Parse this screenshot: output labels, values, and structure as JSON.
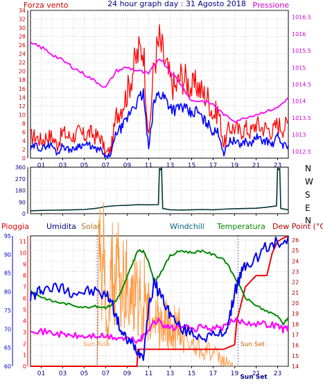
{
  "header": {
    "left_label": "Forza vento",
    "title": "24 hour graph day : 31 Agosto 2018",
    "right_label": "Pressione"
  },
  "compass": [
    "N",
    "W",
    "S",
    "E",
    "N"
  ],
  "legend_bottom": {
    "pioggia": "Pioggia",
    "umidita": "Umidita",
    "solar": "Solar",
    "windchill": "Windchill",
    "temperatura": "Temperatura",
    "dewpoint": "Dew Point (°C)"
  },
  "annotations": {
    "sun_rise": "Sun Rise",
    "sun_set": "Sun Set",
    "sun_set_axis": "Sun Set"
  },
  "colors": {
    "background": "#ffffff",
    "grid": "#b0b0b0",
    "wind": "#ff0000",
    "gust_base": "#0000ff",
    "pressure": "#ff00ff",
    "direction": "#003333",
    "humidity": "#0000ee",
    "solar": "#ff9944",
    "temperature": "#008800",
    "dewpoint": "#ff00ff",
    "rain": "#ee0000",
    "axis_blue": "#000080",
    "axis_red": "#cc0000",
    "axis_magenta": "#cc00cc",
    "axis_darkred": "#aa0000"
  },
  "chart_data": [
    {
      "type": "line",
      "panel": "wind_pressure",
      "x_ticks": [
        "01",
        "03",
        "05",
        "07",
        "09",
        "11",
        "13",
        "15",
        "17",
        "19",
        "21",
        "23"
      ],
      "y_left_ticks": [
        "0",
        "2",
        "4",
        "6",
        "8",
        "10",
        "12",
        "14",
        "16",
        "18",
        "20",
        "22",
        "24",
        "26",
        "28",
        "30",
        "32",
        "34"
      ],
      "y_left_range": [
        0,
        34
      ],
      "y_right_ticks": [
        "1012.5",
        "1013",
        "1013.5",
        "1014",
        "1014.5",
        "1015",
        "1015.5",
        "1016",
        "1016.5"
      ],
      "y_right_range": [
        1012.3,
        1016.7
      ],
      "series": [
        {
          "name": "Forza vento",
          "color": "#ff0000",
          "x": [
            0,
            0.5,
            1,
            1.5,
            2,
            2.5,
            3,
            3.5,
            4,
            4.5,
            5,
            5.5,
            6,
            6.5,
            7,
            7.5,
            8,
            8.5,
            9,
            9.5,
            10,
            10.5,
            11,
            11.5,
            12,
            12.5,
            13,
            13.5,
            14,
            14.5,
            15,
            15.5,
            16,
            16.5,
            17,
            17.5,
            18,
            18.5,
            19,
            19.5,
            20,
            20.5,
            21,
            21.5,
            22,
            22.5,
            23,
            23.5,
            24
          ],
          "values": [
            5,
            5,
            4,
            5,
            5,
            3,
            6,
            5,
            5,
            6,
            5,
            6,
            5,
            5,
            1,
            2,
            10,
            12,
            15,
            20,
            24,
            26,
            4,
            22,
            27,
            22,
            18,
            16,
            19,
            18,
            16,
            17,
            15,
            14,
            10,
            11,
            3,
            7,
            7,
            6,
            7,
            6,
            8,
            7,
            7,
            6,
            8,
            7,
            8
          ]
        },
        {
          "name": "Base vento",
          "color": "#0000ff",
          "x": [
            0,
            0.5,
            1,
            1.5,
            2,
            2.5,
            3,
            3.5,
            4,
            4.5,
            5,
            5.5,
            6,
            6.5,
            7,
            7.5,
            8,
            8.5,
            9,
            9.5,
            10,
            10.5,
            11,
            11.5,
            12,
            12.5,
            13,
            13.5,
            14,
            14.5,
            15,
            15.5,
            16,
            16.5,
            17,
            17.5,
            18,
            18.5,
            19,
            19.5,
            20,
            20.5,
            21,
            21.5,
            22,
            22.5,
            23,
            23.5,
            24
          ],
          "values": [
            2,
            3,
            2,
            3,
            3,
            1,
            3,
            2,
            2,
            3,
            3,
            3,
            2,
            2,
            0,
            1,
            6,
            7,
            9,
            12,
            13,
            15,
            2,
            13,
            15,
            14,
            12,
            11,
            12,
            11,
            10,
            11,
            9,
            8,
            6,
            6,
            1,
            4,
            4,
            3,
            4,
            3,
            5,
            4,
            4,
            3,
            5,
            3,
            3
          ]
        },
        {
          "name": "Pressione",
          "color": "#ff00ff",
          "x": [
            0,
            1,
            2,
            3,
            4,
            5,
            6,
            7,
            8,
            9,
            10,
            11,
            12,
            13,
            14,
            15,
            16,
            17,
            18,
            19,
            20,
            21,
            22,
            23,
            24
          ],
          "values": [
            1015.7,
            1015.6,
            1015.4,
            1015.2,
            1015.0,
            1014.8,
            1014.6,
            1014.4,
            1014.9,
            1015.0,
            1014.9,
            1014.8,
            1015.3,
            1014.9,
            1014.5,
            1014.0,
            1014.0,
            1013.9,
            1013.6,
            1013.4,
            1013.5,
            1013.6,
            1013.7,
            1013.8,
            1014.1
          ]
        }
      ]
    },
    {
      "type": "line",
      "panel": "wind_direction",
      "x_ticks": [
        "01",
        "03",
        "05",
        "07",
        "09",
        "11",
        "13",
        "15",
        "17",
        "19",
        "21",
        "23"
      ],
      "y_ticks": [
        "0",
        "90",
        "180",
        "270",
        "360"
      ],
      "y_range": [
        0,
        360
      ],
      "series": [
        {
          "name": "Direzione",
          "color": "#003333",
          "x": [
            0,
            1,
            2,
            3,
            4,
            5,
            6,
            7,
            8,
            9,
            10,
            11,
            11.9,
            12.0,
            12.1,
            12.2,
            12.3,
            13,
            14,
            15,
            16,
            17,
            18,
            19,
            20,
            21,
            22,
            22.9,
            23.0,
            23.1,
            23.2,
            23.3,
            24
          ],
          "values": [
            22,
            25,
            27,
            28,
            30,
            32,
            40,
            55,
            62,
            65,
            70,
            68,
            70,
            350,
            340,
            355,
            40,
            30,
            28,
            30,
            32,
            30,
            35,
            38,
            40,
            42,
            50,
            60,
            355,
            340,
            350,
            40,
            30
          ]
        }
      ]
    },
    {
      "type": "line",
      "panel": "temperature_humidity",
      "x_ticks": [
        "01",
        "03",
        "05",
        "07",
        "09",
        "11",
        "13",
        "15",
        "17",
        "19",
        "21",
        "23"
      ],
      "sun_axis_label": "Sun Set",
      "y_rain_ticks": [
        "0",
        "1",
        "2",
        "3",
        "4",
        "5",
        "6",
        "7",
        "8",
        "9",
        "10",
        "11"
      ],
      "y_rain_range": [
        0,
        11.5
      ],
      "y_humidity_ticks": [
        "60",
        "65",
        "70",
        "75",
        "80",
        "85",
        "90",
        "95"
      ],
      "y_humidity_range": [
        60,
        95
      ],
      "y_temp_ticks": [
        "14",
        "15",
        "16",
        "17",
        "18",
        "19",
        "20",
        "21",
        "22",
        "23",
        "24",
        "25",
        "26"
      ],
      "y_temp_range": [
        14,
        26.4
      ],
      "series": [
        {
          "name": "Umidita",
          "color": "#0000ee",
          "x": [
            0,
            0.5,
            1,
            2,
            3,
            4,
            5,
            6,
            7,
            7.5,
            8,
            8.5,
            9,
            9.5,
            10,
            10.5,
            11,
            11.5,
            12,
            12.5,
            13,
            14,
            15,
            16,
            17,
            18,
            18.5,
            19,
            19.5,
            20,
            21,
            22,
            23,
            24
          ],
          "values": [
            79,
            79,
            81,
            81,
            81,
            80,
            80,
            80,
            79,
            78,
            73,
            69,
            67,
            66,
            64,
            63,
            76,
            82,
            80,
            77,
            74,
            70,
            69,
            68,
            68,
            69,
            72,
            80,
            84,
            87,
            89,
            92,
            93,
            95
          ]
        },
        {
          "name": "Temperatura",
          "color": "#008800",
          "x": [
            0,
            1,
            2,
            3,
            4,
            5,
            6,
            7,
            7.5,
            8,
            8.5,
            9,
            9.5,
            10,
            10.5,
            11,
            11.5,
            12,
            13,
            14,
            15,
            16,
            17,
            18,
            19,
            20,
            21,
            22,
            23,
            23.5,
            24
          ],
          "values": [
            21.2,
            20.6,
            20.2,
            20.0,
            19.8,
            19.6,
            19.7,
            19.6,
            19.8,
            20.3,
            21.2,
            22.5,
            23.8,
            25.0,
            24.9,
            24.0,
            22.0,
            22.7,
            24.5,
            25.0,
            24.8,
            25.0,
            24.6,
            24.2,
            22.5,
            20.5,
            19.8,
            19.2,
            18.8,
            18.0,
            18.6
          ]
        },
        {
          "name": "Dew Point",
          "color": "#ff00ff",
          "x": [
            0,
            1,
            2,
            3,
            4,
            5,
            6,
            7,
            8,
            9,
            10,
            10.5,
            11,
            11.5,
            12,
            12.5,
            13,
            14,
            15,
            16,
            17,
            18,
            19,
            20,
            21,
            22,
            23,
            23.5,
            24
          ],
          "values": [
            17.6,
            17.3,
            17.2,
            17.0,
            16.9,
            16.8,
            16.9,
            16.8,
            16.7,
            16.6,
            16.4,
            16.8,
            17.6,
            18.2,
            18.3,
            17.9,
            17.6,
            17.8,
            17.5,
            17.7,
            17.6,
            17.7,
            18.4,
            18.2,
            18.1,
            18.0,
            17.9,
            17.5,
            17.7
          ]
        },
        {
          "name": "Pioggia",
          "color": "#ee0000",
          "x": [
            0,
            8,
            9.9,
            10,
            18,
            19,
            19.2,
            20,
            21,
            22,
            22.5,
            23,
            23.5,
            24
          ],
          "values": [
            0,
            0,
            0,
            1.5,
            1.5,
            1.9,
            4,
            7,
            8,
            8,
            10,
            11,
            11.3,
            11.5
          ]
        },
        {
          "name": "Solar",
          "color": "#ff9944",
          "x": [
            6.2,
            6.4,
            6.6,
            6.8,
            7.0,
            7.2,
            7.4,
            7.6,
            7.8,
            8.0,
            8.2,
            8.4,
            8.6,
            8.8,
            9.0,
            9.2,
            9.4,
            9.6,
            9.8,
            10.0,
            10.2,
            10.4,
            10.6,
            10.8,
            11.0,
            11.2,
            11.4,
            11.6,
            11.8,
            12.0,
            12.2,
            12.4,
            12.6,
            12.8,
            13.0,
            13.2,
            13.4,
            13.6,
            13.8,
            14.0,
            14.5,
            15.0,
            15.5,
            16.0,
            16.5,
            17.0,
            17.5,
            18.0,
            18.5,
            19.0
          ],
          "values": [
            0,
            95,
            60,
            86,
            40,
            20,
            50,
            78,
            55,
            65,
            88,
            45,
            72,
            50,
            84,
            38,
            62,
            44,
            70,
            40,
            54,
            32,
            60,
            30,
            46,
            26,
            40,
            30,
            48,
            28,
            36,
            22,
            40,
            24,
            34,
            20,
            30,
            24,
            30,
            22,
            20,
            18,
            16,
            15,
            13,
            9,
            6,
            4,
            2,
            0
          ]
        }
      ]
    }
  ]
}
